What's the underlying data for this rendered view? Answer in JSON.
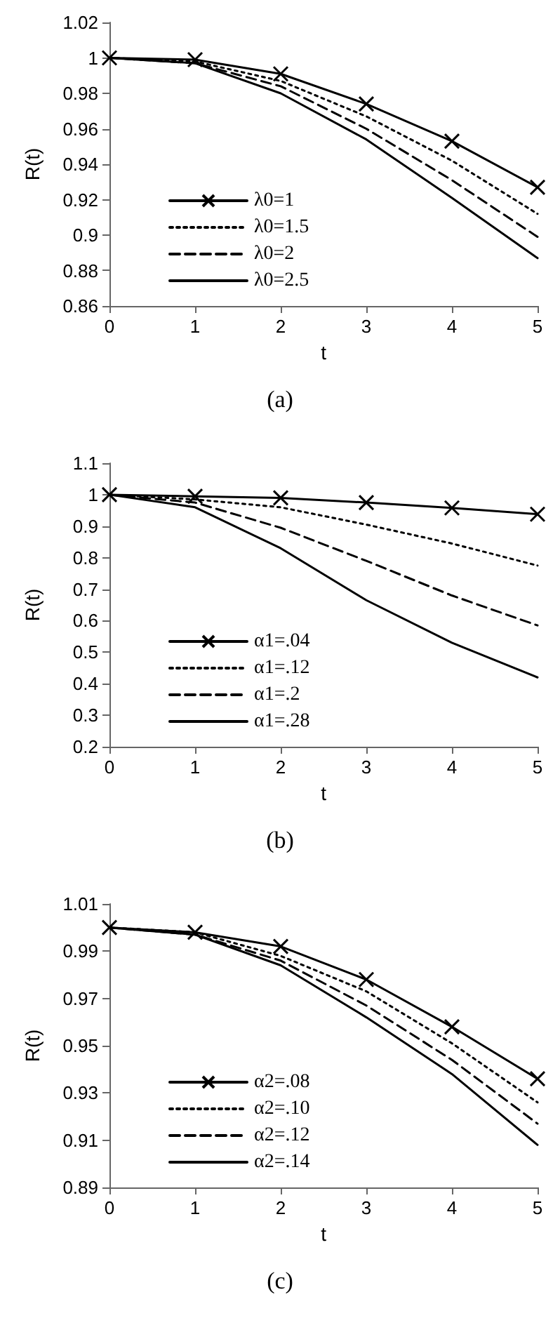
{
  "chart_data": [
    {
      "type": "line",
      "xlabel": "t",
      "ylabel": "R(t)",
      "x": [
        0,
        1,
        2,
        3,
        4,
        5
      ],
      "xlim": [
        0,
        5
      ],
      "xticks": [
        0,
        1,
        2,
        3,
        4,
        5
      ],
      "ylim": [
        0.86,
        1.02
      ],
      "yticks": [
        0.86,
        0.88,
        0.9,
        0.92,
        0.94,
        0.96,
        0.98,
        1,
        1.02
      ],
      "legend": "bottom left",
      "annotations": [
        "(a)"
      ],
      "series": [
        {
          "name": "λ0=1",
          "color": "#000000",
          "marker": "cross",
          "line_style": "solid",
          "values": [
            1,
            0.999,
            0.991,
            0.974,
            0.953,
            0.927
          ]
        },
        {
          "name": "λ0=1.5",
          "color": "#000000",
          "marker": "none",
          "line_style": "dotted",
          "values": [
            1,
            0.998,
            0.987,
            0.967,
            0.942,
            0.912
          ]
        },
        {
          "name": "λ0=2",
          "color": "#000000",
          "marker": "none",
          "line_style": "dashed",
          "values": [
            1,
            0.997,
            0.984,
            0.96,
            0.931,
            0.899
          ]
        },
        {
          "name": "λ0=2.5",
          "color": "#000000",
          "marker": "none",
          "line_style": "solid",
          "values": [
            1,
            0.997,
            0.98,
            0.954,
            0.921,
            0.887
          ]
        }
      ]
    },
    {
      "type": "line",
      "xlabel": "t",
      "ylabel": "R(t)",
      "x": [
        0,
        1,
        2,
        3,
        4,
        5
      ],
      "xlim": [
        0,
        5
      ],
      "xticks": [
        0,
        1,
        2,
        3,
        4,
        5
      ],
      "ylim": [
        0.2,
        1.1
      ],
      "yticks": [
        0.2,
        0.3,
        0.4,
        0.5,
        0.6,
        0.7,
        0.8,
        0.9,
        1,
        1.1
      ],
      "legend": "bottom left",
      "annotations": [
        "(b)"
      ],
      "series": [
        {
          "name": "α1=.04",
          "color": "#000000",
          "marker": "cross",
          "line_style": "solid",
          "values": [
            1,
            0.995,
            0.99,
            0.975,
            0.958,
            0.938
          ]
        },
        {
          "name": "α1=.12",
          "color": "#000000",
          "marker": "none",
          "line_style": "dotted",
          "values": [
            1,
            0.985,
            0.96,
            0.905,
            0.845,
            0.775
          ]
        },
        {
          "name": "α1=.2",
          "color": "#000000",
          "marker": "none",
          "line_style": "dashed",
          "values": [
            1,
            0.975,
            0.895,
            0.79,
            0.68,
            0.585
          ]
        },
        {
          "name": "α1=.28",
          "color": "#000000",
          "marker": "none",
          "line_style": "solid",
          "values": [
            1,
            0.96,
            0.83,
            0.665,
            0.53,
            0.42
          ]
        }
      ]
    },
    {
      "type": "line",
      "xlabel": "t",
      "ylabel": "R(t)",
      "x": [
        0,
        1,
        2,
        3,
        4,
        5
      ],
      "xlim": [
        0,
        5
      ],
      "xticks": [
        0,
        1,
        2,
        3,
        4,
        5
      ],
      "ylim": [
        0.89,
        1.01
      ],
      "yticks": [
        0.89,
        0.91,
        0.93,
        0.95,
        0.97,
        0.99,
        1.01
      ],
      "legend": "bottom left",
      "annotations": [
        "(c)"
      ],
      "series": [
        {
          "name": "α2=.08",
          "color": "#000000",
          "marker": "cross",
          "line_style": "solid",
          "values": [
            1,
            0.998,
            0.992,
            0.978,
            0.958,
            0.936
          ]
        },
        {
          "name": "α2=.10",
          "color": "#000000",
          "marker": "none",
          "line_style": "dotted",
          "values": [
            1,
            0.998,
            0.988,
            0.973,
            0.951,
            0.926
          ]
        },
        {
          "name": "α2=.12",
          "color": "#000000",
          "marker": "none",
          "line_style": "dashed",
          "values": [
            1,
            0.997,
            0.986,
            0.967,
            0.944,
            0.917
          ]
        },
        {
          "name": "α2=.14",
          "color": "#000000",
          "marker": "none",
          "line_style": "solid",
          "values": [
            1,
            0.997,
            0.984,
            0.962,
            0.938,
            0.908
          ]
        }
      ]
    }
  ]
}
